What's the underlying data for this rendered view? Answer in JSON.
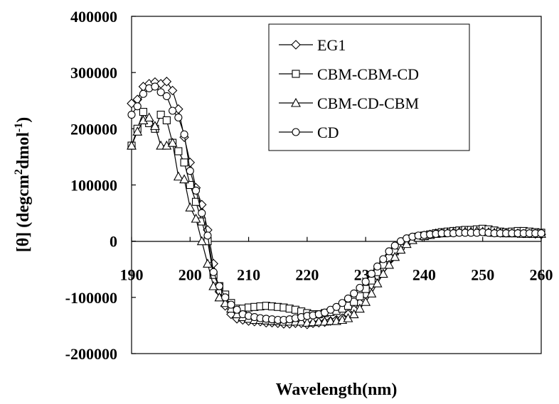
{
  "chart_data": {
    "type": "line",
    "xlabel": "Wavelength(nm)",
    "ylabel_parts": [
      "[θ] (degcm",
      "2",
      "dmol",
      "-1",
      ")"
    ],
    "xlim": [
      190,
      260
    ],
    "ylim": [
      -200000,
      400000
    ],
    "x_ticks": [
      190,
      200,
      210,
      220,
      230,
      240,
      250,
      260
    ],
    "y_ticks": [
      -200000,
      -100000,
      0,
      100000,
      200000,
      300000,
      400000
    ],
    "grid": false,
    "legend_position": "top-right",
    "series": [
      {
        "name": "EG1",
        "marker": "diamond",
        "x": [
          190,
          191,
          192,
          193,
          194,
          195,
          196,
          197,
          198,
          199,
          200,
          201,
          202,
          203,
          204,
          205,
          206,
          207,
          208,
          209,
          210,
          211,
          212,
          213,
          214,
          215,
          216,
          217,
          218,
          219,
          220,
          221,
          222,
          223,
          224,
          225,
          226,
          227,
          228,
          229,
          230,
          231,
          232,
          233,
          234,
          235,
          236,
          237,
          238,
          239,
          240,
          241,
          242,
          243,
          244,
          245,
          246,
          247,
          248,
          249,
          250,
          251,
          252,
          253,
          254,
          255,
          256,
          257,
          258,
          259,
          260
        ],
        "values": [
          245000,
          252000,
          275000,
          280000,
          283000,
          280000,
          284000,
          268000,
          235000,
          185000,
          140000,
          95000,
          65000,
          20000,
          -40000,
          -90000,
          -115000,
          -130000,
          -138000,
          -140000,
          -142000,
          -143000,
          -143000,
          -145000,
          -145000,
          -146000,
          -147000,
          -147000,
          -146000,
          -146000,
          -148000,
          -146000,
          -145000,
          -144000,
          -142000,
          -140000,
          -137000,
          -130000,
          -122000,
          -110000,
          -95000,
          -78000,
          -62000,
          -48000,
          -35000,
          -20000,
          -8000,
          0,
          4000,
          8000,
          10000,
          12000,
          14000,
          15000,
          16000,
          17000,
          17000,
          18000,
          18000,
          19000,
          18000,
          17000,
          16000,
          15000,
          15000,
          15000,
          14000,
          14000,
          14000,
          13000,
          12000
        ]
      },
      {
        "name": "CBM-CBM-CD",
        "marker": "square",
        "x": [
          190,
          191,
          192,
          193,
          194,
          195,
          196,
          197,
          198,
          199,
          200,
          201,
          202,
          203,
          204,
          205,
          206,
          207,
          208,
          209,
          210,
          211,
          212,
          213,
          214,
          215,
          216,
          217,
          218,
          219,
          220,
          221,
          222,
          223,
          224,
          225,
          226,
          227,
          228,
          229,
          230,
          231,
          232,
          233,
          234,
          235,
          236,
          237,
          238,
          239,
          240,
          241,
          242,
          243,
          244,
          245,
          246,
          247,
          248,
          249,
          250,
          251,
          252,
          253,
          254,
          255,
          256,
          257,
          258,
          259,
          260
        ],
        "values": [
          170000,
          200000,
          230000,
          210000,
          200000,
          225000,
          215000,
          175000,
          160000,
          140000,
          100000,
          70000,
          35000,
          0,
          -60000,
          -80000,
          -95000,
          -110000,
          -120000,
          -120000,
          -118000,
          -117000,
          -116000,
          -115000,
          -116000,
          -117000,
          -118000,
          -120000,
          -122000,
          -125000,
          -128000,
          -130000,
          -130000,
          -128000,
          -126000,
          -124000,
          -120000,
          -115000,
          -108000,
          -98000,
          -85000,
          -70000,
          -55000,
          -42000,
          -30000,
          -18000,
          -8000,
          0,
          5000,
          8000,
          10000,
          12000,
          14000,
          16000,
          17000,
          18000,
          19000,
          20000,
          20000,
          21000,
          22000,
          21000,
          19000,
          17000,
          16000,
          17000,
          18000,
          18000,
          17000,
          16000,
          15000
        ]
      },
      {
        "name": "CBM-CD-CBM",
        "marker": "triangle",
        "x": [
          190,
          191,
          192,
          193,
          194,
          195,
          196,
          197,
          198,
          199,
          200,
          201,
          202,
          203,
          204,
          205,
          206,
          207,
          208,
          209,
          210,
          211,
          212,
          213,
          214,
          215,
          216,
          217,
          218,
          219,
          220,
          221,
          222,
          223,
          224,
          225,
          226,
          227,
          228,
          229,
          230,
          231,
          232,
          233,
          234,
          235,
          236,
          237,
          238,
          239,
          240,
          241,
          242,
          243,
          244,
          245,
          246,
          247,
          248,
          249,
          250,
          251,
          252,
          253,
          254,
          255,
          256,
          257,
          258,
          259,
          260
        ],
        "values": [
          170000,
          195000,
          215000,
          220000,
          205000,
          170000,
          170000,
          175000,
          115000,
          110000,
          60000,
          40000,
          0,
          -40000,
          -80000,
          -100000,
          -110000,
          -120000,
          -130000,
          -135000,
          -138000,
          -140000,
          -140000,
          -141000,
          -142000,
          -142000,
          -143000,
          -143000,
          -143000,
          -143000,
          -145000,
          -144000,
          -143000,
          -143000,
          -142000,
          -142000,
          -140000,
          -137000,
          -130000,
          -120000,
          -108000,
          -93000,
          -75000,
          -58000,
          -42000,
          -28000,
          -15000,
          -5000,
          2000,
          6000,
          9000,
          11000,
          13000,
          14000,
          15000,
          16000,
          17000,
          17000,
          17000,
          18000,
          17000,
          16000,
          15000,
          15000,
          14000,
          14000,
          14000,
          13000,
          13000,
          13000,
          13000
        ]
      },
      {
        "name": "CD",
        "marker": "circle",
        "x": [
          190,
          191,
          192,
          193,
          194,
          195,
          196,
          197,
          198,
          199,
          200,
          201,
          202,
          203,
          204,
          205,
          206,
          207,
          208,
          209,
          210,
          211,
          212,
          213,
          214,
          215,
          216,
          217,
          218,
          219,
          220,
          221,
          222,
          223,
          224,
          225,
          226,
          227,
          228,
          229,
          230,
          231,
          232,
          233,
          234,
          235,
          236,
          237,
          238,
          239,
          240,
          241,
          242,
          243,
          244,
          245,
          246,
          247,
          248,
          249,
          250,
          251,
          252,
          253,
          254,
          255,
          256,
          257,
          258,
          259,
          260
        ],
        "values": [
          225000,
          240000,
          262000,
          272000,
          275000,
          265000,
          258000,
          232000,
          220000,
          190000,
          125000,
          90000,
          50000,
          10000,
          -55000,
          -80000,
          -100000,
          -113000,
          -122000,
          -130000,
          -133000,
          -135000,
          -137000,
          -138000,
          -139000,
          -140000,
          -140000,
          -139000,
          -137000,
          -135000,
          -133000,
          -132000,
          -130000,
          -127000,
          -122000,
          -117000,
          -110000,
          -102000,
          -93000,
          -83000,
          -72000,
          -58000,
          -45000,
          -32000,
          -18000,
          -8000,
          0,
          5000,
          8000,
          10000,
          11000,
          12000,
          13000,
          14000,
          14000,
          14000,
          15000,
          15000,
          15000,
          15000,
          16000,
          15000,
          14000,
          14000,
          14000,
          14000,
          14000,
          14000,
          14000,
          14000,
          14000
        ]
      }
    ]
  }
}
